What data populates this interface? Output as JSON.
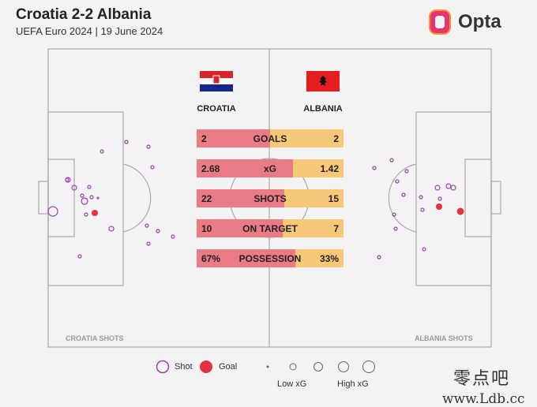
{
  "header": {
    "title": "Croatia 2-2 Albania",
    "subtitle": "UEFA Euro 2024 | 19 June 2024",
    "logo_text": "Opta"
  },
  "teams": {
    "home": "CROATIA",
    "away": "ALBANIA"
  },
  "stats": [
    {
      "label": "GOALS",
      "home": "2",
      "away": "2",
      "home_share": 0.5
    },
    {
      "label": "xG",
      "home": "2.68",
      "away": "1.42",
      "home_share": 0.654
    },
    {
      "label": "SHOTS",
      "home": "22",
      "away": "15",
      "home_share": 0.595
    },
    {
      "label": "ON TARGET",
      "home": "10",
      "away": "7",
      "home_share": 0.588
    },
    {
      "label": "POSSESSION",
      "home": "67%",
      "away": "33%",
      "home_share": 0.67
    }
  ],
  "labels": {
    "home_shots": "CROATIA SHOTS",
    "away_shots": "ALBANIA SHOTS"
  },
  "legend": {
    "shot": "Shot",
    "goal": "Goal",
    "low_xg": "Low xG",
    "high_xg": "High xG"
  },
  "watermark": {
    "line1": "零点吧",
    "line2": "www.Ldb.cc"
  },
  "colors": {
    "home_bar": "#ea7a84",
    "away_bar": "#f7c877",
    "shot": "#a23bb5",
    "goal": "#e3313f"
  },
  "chart_data": {
    "type": "table",
    "title": "Croatia 2-2 Albania",
    "columns": [
      "CROATIA",
      "ALBANIA"
    ],
    "rows": [
      {
        "label": "GOALS",
        "values": [
          2,
          2
        ]
      },
      {
        "label": "xG",
        "values": [
          2.68,
          1.42
        ]
      },
      {
        "label": "SHOTS",
        "values": [
          22,
          15
        ]
      },
      {
        "label": "ON TARGET",
        "values": [
          10,
          7
        ]
      },
      {
        "label": "POSSESSION",
        "values": [
          67,
          33
        ]
      }
    ]
  }
}
